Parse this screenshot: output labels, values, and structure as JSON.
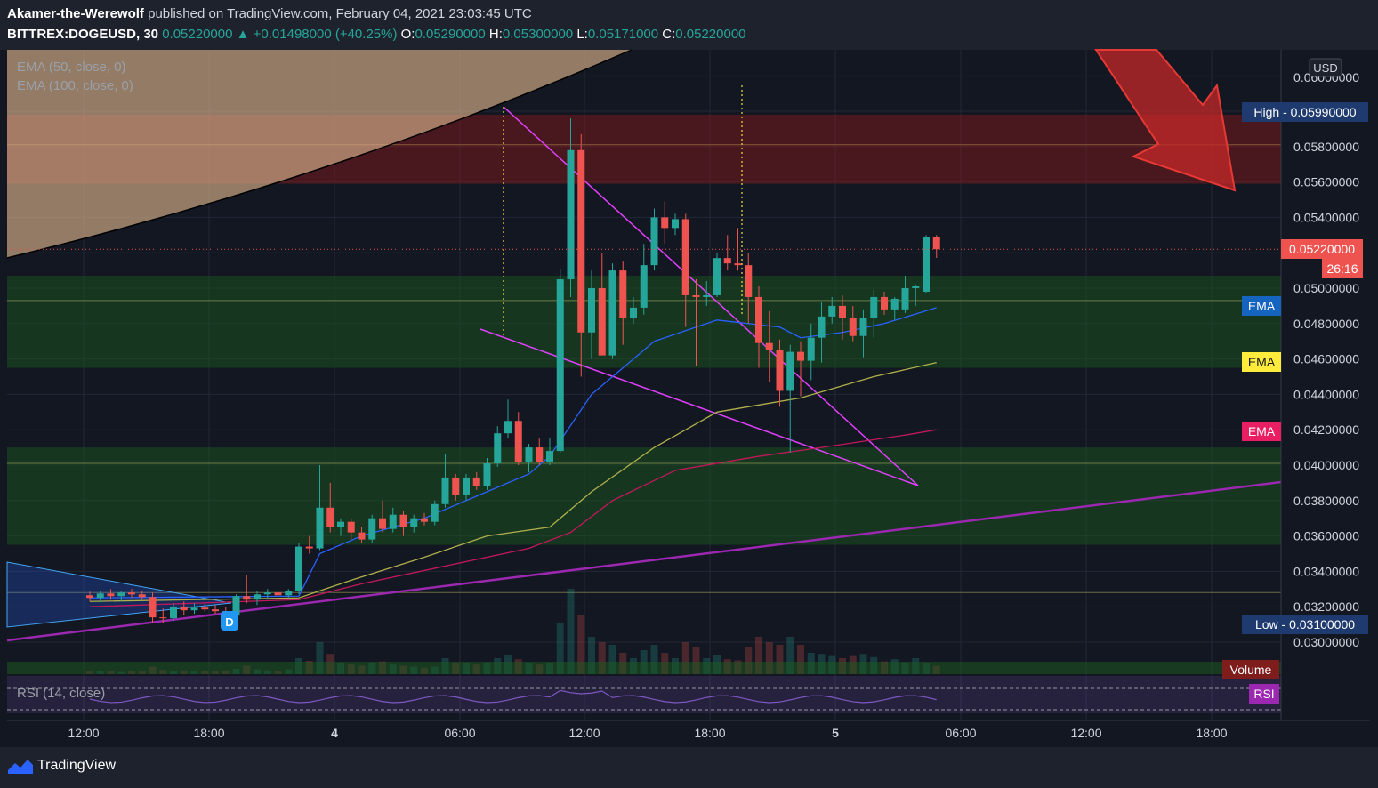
{
  "header": {
    "author": "Akamer-the-Werewolf",
    "published": "published on TradingView.com, February 04, 2021 23:03:45 UTC",
    "symbol": "BITTREX:DOGEUSD, 30",
    "last_price": "0.05220000",
    "change": "+0.01498000 (+40.25%)",
    "o_label": "O:",
    "o_value": "0.05290000",
    "h_label": "H:",
    "h_value": "0.05300000",
    "l_label": "L:",
    "l_value": "0.05171000",
    "c_label": "C:",
    "c_value": "0.05220000"
  },
  "indicators": {
    "ema50": "EMA (50, close, 0)",
    "ema100": "EMA (100, close, 0)",
    "rsi": "RSI (14, close)"
  },
  "price_axis": {
    "currency": "USD",
    "labels": [
      "0.03000000",
      "0.03200000",
      "0.03400000",
      "0.03600000",
      "0.03800000",
      "0.04000000",
      "0.04200000",
      "0.04400000",
      "0.04600000",
      "0.04800000",
      "0.05000000",
      "0.05400000",
      "0.05600000",
      "0.05800000"
    ],
    "top_partial": "0.06000000",
    "high_tag": "High - 0.05990000",
    "low_tag": "Low - 0.03100000",
    "current_tag": "0.05220000",
    "countdown": "26:16",
    "ema_tags": [
      "EMA",
      "EMA",
      "EMA"
    ],
    "volume_tag": "Volume",
    "rsi_tag": "RSI"
  },
  "time_axis": {
    "labels": [
      "12:00",
      "18:00",
      "4",
      "06:00",
      "12:00",
      "18:00",
      "5",
      "06:00",
      "12:00",
      "18:00"
    ]
  },
  "marker": "D",
  "footer": {
    "brand": "TradingView"
  },
  "colors": {
    "bg": "#131722",
    "up": "#26a69a",
    "down": "#ef5350",
    "ema_blue": "#2962ff",
    "ema_yellow": "#b0b04a",
    "ema_red": "#c2185b",
    "supply_zone": "#8b1a1a",
    "demand_zone": "#1b5e20",
    "trendline": "#e040fb",
    "arrow": "#c62828"
  },
  "chart_data": {
    "type": "candlestick",
    "symbol": "BITTREX:DOGEUSD",
    "interval": "30",
    "ylim": [
      0.029,
      0.062
    ],
    "x_range": [
      "2021-02-03 09:00",
      "2021-02-05 20:00"
    ],
    "yaxis_side": "right",
    "candles": [
      {
        "t": "2021-02-03 09:00",
        "o": 0.03265,
        "h": 0.03285,
        "l": 0.0323,
        "c": 0.0325
      },
      {
        "t": "2021-02-03 09:30",
        "o": 0.0325,
        "h": 0.0329,
        "l": 0.03225,
        "c": 0.03275
      },
      {
        "t": "2021-02-03 10:00",
        "o": 0.03275,
        "h": 0.033,
        "l": 0.0324,
        "c": 0.0326
      },
      {
        "t": "2021-02-03 10:30",
        "o": 0.0326,
        "h": 0.0329,
        "l": 0.0323,
        "c": 0.0328
      },
      {
        "t": "2021-02-03 11:00",
        "o": 0.0328,
        "h": 0.033,
        "l": 0.0325,
        "c": 0.0327
      },
      {
        "t": "2021-02-03 11:30",
        "o": 0.0327,
        "h": 0.0329,
        "l": 0.0324,
        "c": 0.03255
      },
      {
        "t": "2021-02-03 12:00",
        "o": 0.03255,
        "h": 0.0328,
        "l": 0.0311,
        "c": 0.0314
      },
      {
        "t": "2021-02-03 12:30",
        "o": 0.0314,
        "h": 0.0319,
        "l": 0.0311,
        "c": 0.03135
      },
      {
        "t": "2021-02-03 13:00",
        "o": 0.03135,
        "h": 0.0322,
        "l": 0.0312,
        "c": 0.032
      },
      {
        "t": "2021-02-03 13:30",
        "o": 0.032,
        "h": 0.0323,
        "l": 0.0315,
        "c": 0.0318
      },
      {
        "t": "2021-02-03 14:00",
        "o": 0.0318,
        "h": 0.0322,
        "l": 0.0316,
        "c": 0.03195
      },
      {
        "t": "2021-02-03 14:30",
        "o": 0.03195,
        "h": 0.0322,
        "l": 0.0317,
        "c": 0.03185
      },
      {
        "t": "2021-02-03 15:00",
        "o": 0.03185,
        "h": 0.0321,
        "l": 0.0316,
        "c": 0.03175
      },
      {
        "t": "2021-02-03 15:30",
        "o": 0.03175,
        "h": 0.032,
        "l": 0.0313,
        "c": 0.0315
      },
      {
        "t": "2021-02-03 16:00",
        "o": 0.0315,
        "h": 0.0327,
        "l": 0.0313,
        "c": 0.0326
      },
      {
        "t": "2021-02-03 16:30",
        "o": 0.0326,
        "h": 0.0338,
        "l": 0.0322,
        "c": 0.0324
      },
      {
        "t": "2021-02-03 17:00",
        "o": 0.0324,
        "h": 0.0329,
        "l": 0.0321,
        "c": 0.0327
      },
      {
        "t": "2021-02-03 17:30",
        "o": 0.0327,
        "h": 0.033,
        "l": 0.0324,
        "c": 0.0328
      },
      {
        "t": "2021-02-03 18:00",
        "o": 0.0328,
        "h": 0.033,
        "l": 0.0325,
        "c": 0.03265
      },
      {
        "t": "2021-02-03 18:30",
        "o": 0.03265,
        "h": 0.033,
        "l": 0.0324,
        "c": 0.0329
      },
      {
        "t": "2021-02-03 19:00",
        "o": 0.0329,
        "h": 0.0356,
        "l": 0.0327,
        "c": 0.0354
      },
      {
        "t": "2021-02-03 19:30",
        "o": 0.0354,
        "h": 0.036,
        "l": 0.035,
        "c": 0.0353
      },
      {
        "t": "2021-02-03 20:00",
        "o": 0.0353,
        "h": 0.04,
        "l": 0.0352,
        "c": 0.0376
      },
      {
        "t": "2021-02-03 20:30",
        "o": 0.0376,
        "h": 0.039,
        "l": 0.0362,
        "c": 0.0365
      },
      {
        "t": "2021-02-03 21:00",
        "o": 0.0365,
        "h": 0.037,
        "l": 0.036,
        "c": 0.0368
      },
      {
        "t": "2021-02-03 21:30",
        "o": 0.0368,
        "h": 0.037,
        "l": 0.0358,
        "c": 0.0362
      },
      {
        "t": "2021-02-03 22:00",
        "o": 0.0362,
        "h": 0.0365,
        "l": 0.0356,
        "c": 0.0358
      },
      {
        "t": "2021-02-03 22:30",
        "o": 0.0358,
        "h": 0.0372,
        "l": 0.0356,
        "c": 0.037
      },
      {
        "t": "2021-02-03 23:00",
        "o": 0.037,
        "h": 0.038,
        "l": 0.0362,
        "c": 0.0364
      },
      {
        "t": "2021-02-03 23:30",
        "o": 0.0364,
        "h": 0.0376,
        "l": 0.0362,
        "c": 0.0372
      },
      {
        "t": "2021-02-04 00:00",
        "o": 0.0372,
        "h": 0.0374,
        "l": 0.036,
        "c": 0.0365
      },
      {
        "t": "2021-02-04 00:30",
        "o": 0.0365,
        "h": 0.0372,
        "l": 0.0362,
        "c": 0.037
      },
      {
        "t": "2021-02-04 01:00",
        "o": 0.037,
        "h": 0.0373,
        "l": 0.0366,
        "c": 0.0368
      },
      {
        "t": "2021-02-04 01:30",
        "o": 0.0368,
        "h": 0.038,
        "l": 0.0366,
        "c": 0.0378
      },
      {
        "t": "2021-02-04 02:00",
        "o": 0.0378,
        "h": 0.0406,
        "l": 0.0376,
        "c": 0.0393
      },
      {
        "t": "2021-02-04 02:30",
        "o": 0.0393,
        "h": 0.0395,
        "l": 0.038,
        "c": 0.0383
      },
      {
        "t": "2021-02-04 03:00",
        "o": 0.0383,
        "h": 0.0395,
        "l": 0.038,
        "c": 0.0393
      },
      {
        "t": "2021-02-04 03:30",
        "o": 0.0393,
        "h": 0.0396,
        "l": 0.0386,
        "c": 0.0388
      },
      {
        "t": "2021-02-04 04:00",
        "o": 0.0388,
        "h": 0.0404,
        "l": 0.0386,
        "c": 0.0401
      },
      {
        "t": "2021-02-04 04:30",
        "o": 0.0401,
        "h": 0.0422,
        "l": 0.0399,
        "c": 0.0418
      },
      {
        "t": "2021-02-04 05:00",
        "o": 0.0418,
        "h": 0.0437,
        "l": 0.0415,
        "c": 0.0425
      },
      {
        "t": "2021-02-04 05:30",
        "o": 0.0425,
        "h": 0.043,
        "l": 0.04,
        "c": 0.0402
      },
      {
        "t": "2021-02-04 06:00",
        "o": 0.0402,
        "h": 0.0412,
        "l": 0.0396,
        "c": 0.041
      },
      {
        "t": "2021-02-04 06:30",
        "o": 0.041,
        "h": 0.0415,
        "l": 0.04,
        "c": 0.0402
      },
      {
        "t": "2021-02-04 07:00",
        "o": 0.0402,
        "h": 0.0415,
        "l": 0.04,
        "c": 0.0408
      },
      {
        "t": "2021-02-04 07:30",
        "o": 0.0408,
        "h": 0.0511,
        "l": 0.0407,
        "c": 0.0505
      },
      {
        "t": "2021-02-04 08:00",
        "o": 0.0505,
        "h": 0.0596,
        "l": 0.0495,
        "c": 0.0578
      },
      {
        "t": "2021-02-04 08:30",
        "o": 0.0578,
        "h": 0.0587,
        "l": 0.045,
        "c": 0.0475
      },
      {
        "t": "2021-02-04 09:00",
        "o": 0.0475,
        "h": 0.051,
        "l": 0.046,
        "c": 0.05
      },
      {
        "t": "2021-02-04 09:30",
        "o": 0.05,
        "h": 0.052,
        "l": 0.0462,
        "c": 0.0462
      },
      {
        "t": "2021-02-04 10:00",
        "o": 0.0462,
        "h": 0.0514,
        "l": 0.046,
        "c": 0.051
      },
      {
        "t": "2021-02-04 10:30",
        "o": 0.051,
        "h": 0.0515,
        "l": 0.0468,
        "c": 0.0483
      },
      {
        "t": "2021-02-04 11:00",
        "o": 0.0483,
        "h": 0.0495,
        "l": 0.048,
        "c": 0.0489
      },
      {
        "t": "2021-02-04 11:30",
        "o": 0.0489,
        "h": 0.0525,
        "l": 0.0485,
        "c": 0.0513
      },
      {
        "t": "2021-02-04 12:00",
        "o": 0.0513,
        "h": 0.0545,
        "l": 0.051,
        "c": 0.054
      },
      {
        "t": "2021-02-04 12:30",
        "o": 0.054,
        "h": 0.0549,
        "l": 0.0525,
        "c": 0.0534
      },
      {
        "t": "2021-02-04 13:00",
        "o": 0.0534,
        "h": 0.0542,
        "l": 0.053,
        "c": 0.0539
      },
      {
        "t": "2021-02-04 13:30",
        "o": 0.0539,
        "h": 0.0542,
        "l": 0.0478,
        "c": 0.0496
      },
      {
        "t": "2021-02-04 14:00",
        "o": 0.0496,
        "h": 0.0505,
        "l": 0.0456,
        "c": 0.0495
      },
      {
        "t": "2021-02-04 14:30",
        "o": 0.0495,
        "h": 0.0504,
        "l": 0.049,
        "c": 0.0496
      },
      {
        "t": "2021-02-04 15:00",
        "o": 0.0496,
        "h": 0.052,
        "l": 0.0495,
        "c": 0.0517
      },
      {
        "t": "2021-02-04 15:30",
        "o": 0.0517,
        "h": 0.053,
        "l": 0.051,
        "c": 0.0514
      },
      {
        "t": "2021-02-04 16:00",
        "o": 0.0514,
        "h": 0.0534,
        "l": 0.051,
        "c": 0.0513
      },
      {
        "t": "2021-02-04 16:30",
        "o": 0.0513,
        "h": 0.052,
        "l": 0.048,
        "c": 0.0495
      },
      {
        "t": "2021-02-04 17:00",
        "o": 0.0495,
        "h": 0.0501,
        "l": 0.0455,
        "c": 0.0469
      },
      {
        "t": "2021-02-04 17:30",
        "o": 0.0469,
        "h": 0.0487,
        "l": 0.0447,
        "c": 0.0465
      },
      {
        "t": "2021-02-04 18:00",
        "o": 0.0465,
        "h": 0.0471,
        "l": 0.0433,
        "c": 0.0442
      },
      {
        "t": "2021-02-04 18:30",
        "o": 0.0442,
        "h": 0.0468,
        "l": 0.0407,
        "c": 0.0464
      },
      {
        "t": "2021-02-04 19:00",
        "o": 0.0464,
        "h": 0.047,
        "l": 0.0439,
        "c": 0.0459
      },
      {
        "t": "2021-02-04 19:30",
        "o": 0.0459,
        "h": 0.048,
        "l": 0.0448,
        "c": 0.0472
      },
      {
        "t": "2021-02-04 20:00",
        "o": 0.0472,
        "h": 0.0492,
        "l": 0.0458,
        "c": 0.0484
      },
      {
        "t": "2021-02-04 20:30",
        "o": 0.0484,
        "h": 0.0495,
        "l": 0.048,
        "c": 0.049
      },
      {
        "t": "2021-02-04 21:00",
        "o": 0.049,
        "h": 0.0496,
        "l": 0.0471,
        "c": 0.0483
      },
      {
        "t": "2021-02-04 21:30",
        "o": 0.0483,
        "h": 0.049,
        "l": 0.047,
        "c": 0.0473
      },
      {
        "t": "2021-02-04 22:00",
        "o": 0.0473,
        "h": 0.0488,
        "l": 0.0461,
        "c": 0.0483
      },
      {
        "t": "2021-02-04 22:30",
        "o": 0.0483,
        "h": 0.0499,
        "l": 0.0472,
        "c": 0.0495
      },
      {
        "t": "2021-02-04 23:00",
        "o": 0.0495,
        "h": 0.0498,
        "l": 0.0485,
        "c": 0.0488
      },
      {
        "t": "2021-02-05 00:00",
        "o": 0.0488,
        "h": 0.0495,
        "l": 0.0482,
        "c": 0.0494
      },
      {
        "t": "2021-02-05 00:30",
        "o": 0.0488,
        "h": 0.0507,
        "l": 0.0486,
        "c": 0.05
      },
      {
        "t": "2021-02-05 01:00",
        "o": 0.05,
        "h": 0.0502,
        "l": 0.049,
        "c": 0.0501
      },
      {
        "t": "2021-02-05 01:30",
        "o": 0.0498,
        "h": 0.053,
        "l": 0.0497,
        "c": 0.0529
      },
      {
        "t": "2021-02-05 02:00",
        "o": 0.0529,
        "h": 0.053,
        "l": 0.05171,
        "c": 0.0522
      }
    ],
    "ema_fast": [
      [
        0.0325,
        0
      ],
      [
        0.0326,
        20
      ],
      [
        0.035,
        22
      ],
      [
        0.036,
        26
      ],
      [
        0.037,
        32
      ],
      [
        0.0385,
        38
      ],
      [
        0.0395,
        42
      ],
      [
        0.0405,
        44
      ],
      [
        0.044,
        48
      ],
      [
        0.047,
        54
      ],
      [
        0.0482,
        60
      ],
      [
        0.0478,
        66
      ],
      [
        0.0472,
        68
      ],
      [
        0.0475,
        72
      ],
      [
        0.048,
        76
      ],
      [
        0.0489,
        81
      ]
    ],
    "ema_mid": [
      [
        0.0323,
        0
      ],
      [
        0.0325,
        20
      ],
      [
        0.0335,
        25
      ],
      [
        0.0348,
        32
      ],
      [
        0.036,
        38
      ],
      [
        0.0365,
        44
      ],
      [
        0.0385,
        48
      ],
      [
        0.041,
        54
      ],
      [
        0.043,
        60
      ],
      [
        0.0438,
        68
      ],
      [
        0.045,
        75
      ],
      [
        0.0458,
        81
      ]
    ],
    "ema_slow": [
      [
        0.032,
        0
      ],
      [
        0.0324,
        20
      ],
      [
        0.0333,
        26
      ],
      [
        0.0343,
        34
      ],
      [
        0.0353,
        42
      ],
      [
        0.0362,
        46
      ],
      [
        0.038,
        50
      ],
      [
        0.0397,
        56
      ],
      [
        0.0405,
        64
      ],
      [
        0.041,
        70
      ],
      [
        0.0417,
        78
      ],
      [
        0.042,
        81
      ]
    ],
    "zones": [
      {
        "kind": "supply",
        "from": 0.0559,
        "to": 0.0598
      },
      {
        "kind": "demand",
        "from": 0.0455,
        "to": 0.0507
      },
      {
        "kind": "demand",
        "from": 0.0355,
        "to": 0.041
      }
    ],
    "high": 0.0599,
    "low": 0.031,
    "last": 0.0522
  }
}
